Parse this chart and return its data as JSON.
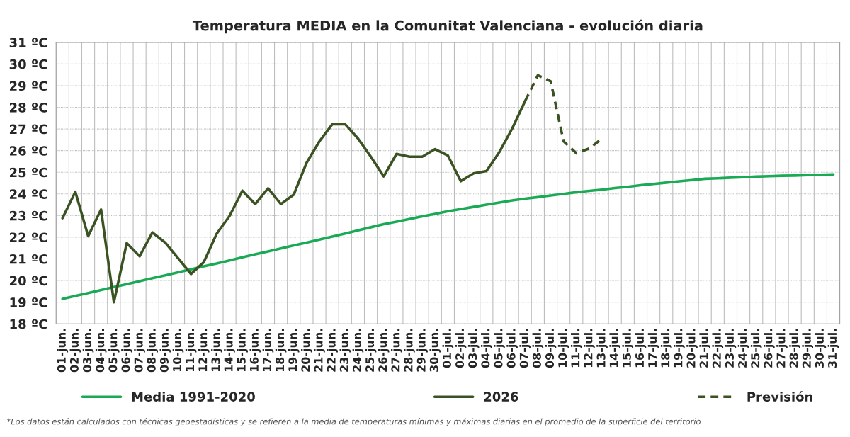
{
  "chart_data": {
    "type": "line",
    "title": "Temperatura MEDIA en la Comunitat Valenciana - evolución diaria",
    "categories": [
      "01-jun.",
      "02-jun.",
      "03-jun.",
      "04-jun.",
      "05-jun.",
      "06-jun.",
      "07-jun.",
      "08-jun.",
      "09-jun.",
      "10-jun.",
      "11-jun.",
      "12-jun.",
      "13-jun.",
      "14-jun.",
      "15-jun.",
      "16-jun.",
      "17-jun.",
      "18-jun.",
      "19-jun.",
      "20-jun.",
      "21-jun.",
      "22-jun.",
      "23-jun.",
      "24-jun.",
      "25-jun.",
      "26-jun.",
      "27-jun.",
      "28-jun.",
      "29-jun.",
      "30-jun.",
      "01-jul.",
      "02-jul.",
      "03-jul.",
      "04-jul.",
      "05-jul.",
      "06-jul.",
      "07-jul.",
      "08-jul.",
      "09-jul.",
      "10-jul.",
      "11-jul.",
      "12-jul.",
      "13-jul.",
      "14-jul.",
      "15-jul.",
      "16-jul.",
      "17-jul.",
      "18-jul.",
      "19-jul.",
      "20-jul.",
      "21-jul.",
      "22-jul.",
      "23-jul.",
      "24-jul.",
      "25-jul.",
      "26-jul.",
      "27-jul.",
      "28-jul.",
      "29-jul.",
      "30-jul.",
      "31-jul."
    ],
    "series": [
      {
        "name": "Media 1991-2020",
        "color": "#1aaa55",
        "line_style": "solid",
        "values": [
          19.15,
          19.29,
          19.42,
          19.56,
          19.7,
          19.83,
          19.97,
          20.11,
          20.24,
          20.38,
          20.52,
          20.66,
          20.79,
          20.93,
          21.07,
          21.21,
          21.34,
          21.48,
          21.62,
          21.75,
          21.89,
          22.03,
          22.17,
          22.32,
          22.46,
          22.6,
          22.72,
          22.84,
          22.96,
          23.08,
          23.2,
          23.3,
          23.4,
          23.5,
          23.6,
          23.7,
          23.78,
          23.85,
          23.93,
          24.0,
          24.08,
          24.14,
          24.2,
          24.27,
          24.33,
          24.4,
          24.46,
          24.52,
          24.58,
          24.64,
          24.7,
          24.72,
          24.75,
          24.77,
          24.8,
          24.82,
          24.84,
          24.85,
          24.87,
          24.88,
          24.9
        ]
      },
      {
        "name": "2026",
        "color": "#3b5323",
        "line_style": "solid",
        "values": [
          22.88,
          24.1,
          22.05,
          23.28,
          19.0,
          21.73,
          21.12,
          22.22,
          21.75,
          21.03,
          20.3,
          20.85,
          22.16,
          22.98,
          24.15,
          23.53,
          24.26,
          23.53,
          23.97,
          25.44,
          26.43,
          27.22,
          27.22,
          26.56,
          25.72,
          24.81,
          25.85,
          25.72,
          25.72,
          26.07,
          25.77,
          24.59,
          24.95,
          25.06,
          25.93,
          27.02,
          28.28,
          null,
          null,
          null,
          null,
          null,
          null,
          null,
          null,
          null,
          null,
          null,
          null,
          null,
          null,
          null,
          null,
          null,
          null,
          null,
          null,
          null,
          null,
          null,
          null
        ]
      },
      {
        "name": "Previsión",
        "color": "#3b5323",
        "line_style": "dashed",
        "values": [
          null,
          null,
          null,
          null,
          null,
          null,
          null,
          null,
          null,
          null,
          null,
          null,
          null,
          null,
          null,
          null,
          null,
          null,
          null,
          null,
          null,
          null,
          null,
          null,
          null,
          null,
          null,
          null,
          null,
          null,
          null,
          null,
          null,
          null,
          null,
          null,
          28.28,
          29.48,
          29.2,
          26.43,
          25.88,
          26.1,
          26.56,
          null,
          null,
          null,
          null,
          null,
          null,
          null,
          null,
          null,
          null,
          null,
          null,
          null,
          null,
          null,
          null,
          null,
          null
        ]
      }
    ],
    "ylim": [
      18,
      31
    ],
    "yticks": [
      {
        "value": 18,
        "label": "18 ºC"
      },
      {
        "value": 19,
        "label": "19 ºC"
      },
      {
        "value": 20,
        "label": "20 ºC"
      },
      {
        "value": 21,
        "label": "21 ºC"
      },
      {
        "value": 22,
        "label": "22 ºC"
      },
      {
        "value": 23,
        "label": "23 ºC"
      },
      {
        "value": 24,
        "label": "24 ºC"
      },
      {
        "value": 25,
        "label": "25 ºC"
      },
      {
        "value": 26,
        "label": "26 ºC"
      },
      {
        "value": 27,
        "label": "27 ºC"
      },
      {
        "value": 28,
        "label": "28 ºC"
      },
      {
        "value": 29,
        "label": "29 ºC"
      },
      {
        "value": 30,
        "label": "30 ºC"
      },
      {
        "value": 31,
        "label": "31 ºC"
      }
    ],
    "grid": true,
    "legend": "bottom",
    "marker": "none",
    "annotations": [
      "*Los datos están calculados con técnicas geoestadísticas y se refieren a la media de temperaturas mínimas y máximas diarias en el promedio de la superficie del territorio"
    ]
  }
}
